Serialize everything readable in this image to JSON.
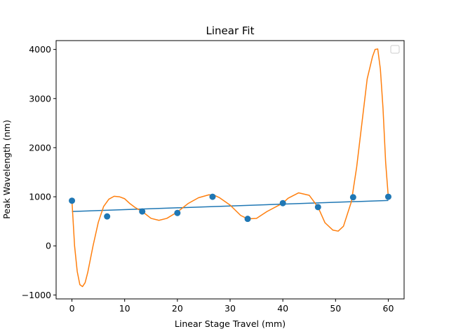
{
  "chart_data": {
    "type": "line",
    "title": "Linear Fit",
    "xlabel": "Linear Stage Travel (mm)",
    "ylabel": "Peak Wavelength (nm)",
    "xlim": [
      -3,
      63
    ],
    "ylim": [
      -1080,
      4180
    ],
    "grid": false,
    "legend": "top-right (empty)",
    "x_ticks": [
      0,
      10,
      20,
      30,
      40,
      50,
      60
    ],
    "x_tick_labels": [
      "0",
      "10",
      "20",
      "30",
      "40",
      "50",
      "60"
    ],
    "y_ticks": [
      -1000,
      0,
      1000,
      2000,
      3000,
      4000
    ],
    "y_tick_labels": [
      "−1000",
      "0",
      "1000",
      "2000",
      "3000",
      "4000"
    ],
    "series": [
      {
        "kind": "scatter",
        "color": "#1f77b4",
        "x": [
          0,
          6.67,
          13.33,
          20,
          26.67,
          33.33,
          40,
          46.67,
          53.33,
          60
        ],
        "y": [
          920,
          600,
          700,
          670,
          1000,
          550,
          870,
          790,
          990,
          1000
        ]
      },
      {
        "kind": "line",
        "color": "#1f77b4",
        "x": [
          0,
          60
        ],
        "y": [
          700,
          925
        ]
      },
      {
        "kind": "line",
        "color": "#ff7f0e",
        "x": [
          0,
          0.5,
          1,
          1.5,
          2,
          2.5,
          3,
          4,
          5,
          6,
          7,
          8,
          9,
          10,
          11,
          12,
          13.33,
          15,
          16.5,
          18,
          20,
          22,
          24,
          26,
          27,
          28,
          30,
          32,
          33.33,
          35,
          37,
          40,
          41,
          43,
          45,
          46.67,
          48,
          49.5,
          50.5,
          51.5,
          53,
          54,
          55,
          56,
          57,
          57.5,
          58,
          58.5,
          59,
          59.5,
          60
        ],
        "y": [
          920,
          0,
          -520,
          -790,
          -830,
          -750,
          -540,
          0,
          480,
          800,
          950,
          1010,
          1000,
          960,
          860,
          780,
          700,
          560,
          520,
          560,
          690,
          860,
          980,
          1040,
          1030,
          980,
          830,
          620,
          550,
          560,
          700,
          870,
          970,
          1080,
          1030,
          790,
          470,
          320,
          300,
          400,
          900,
          1600,
          2500,
          3400,
          3850,
          4000,
          4010,
          3600,
          2800,
          1700,
          1000
        ]
      }
    ]
  }
}
